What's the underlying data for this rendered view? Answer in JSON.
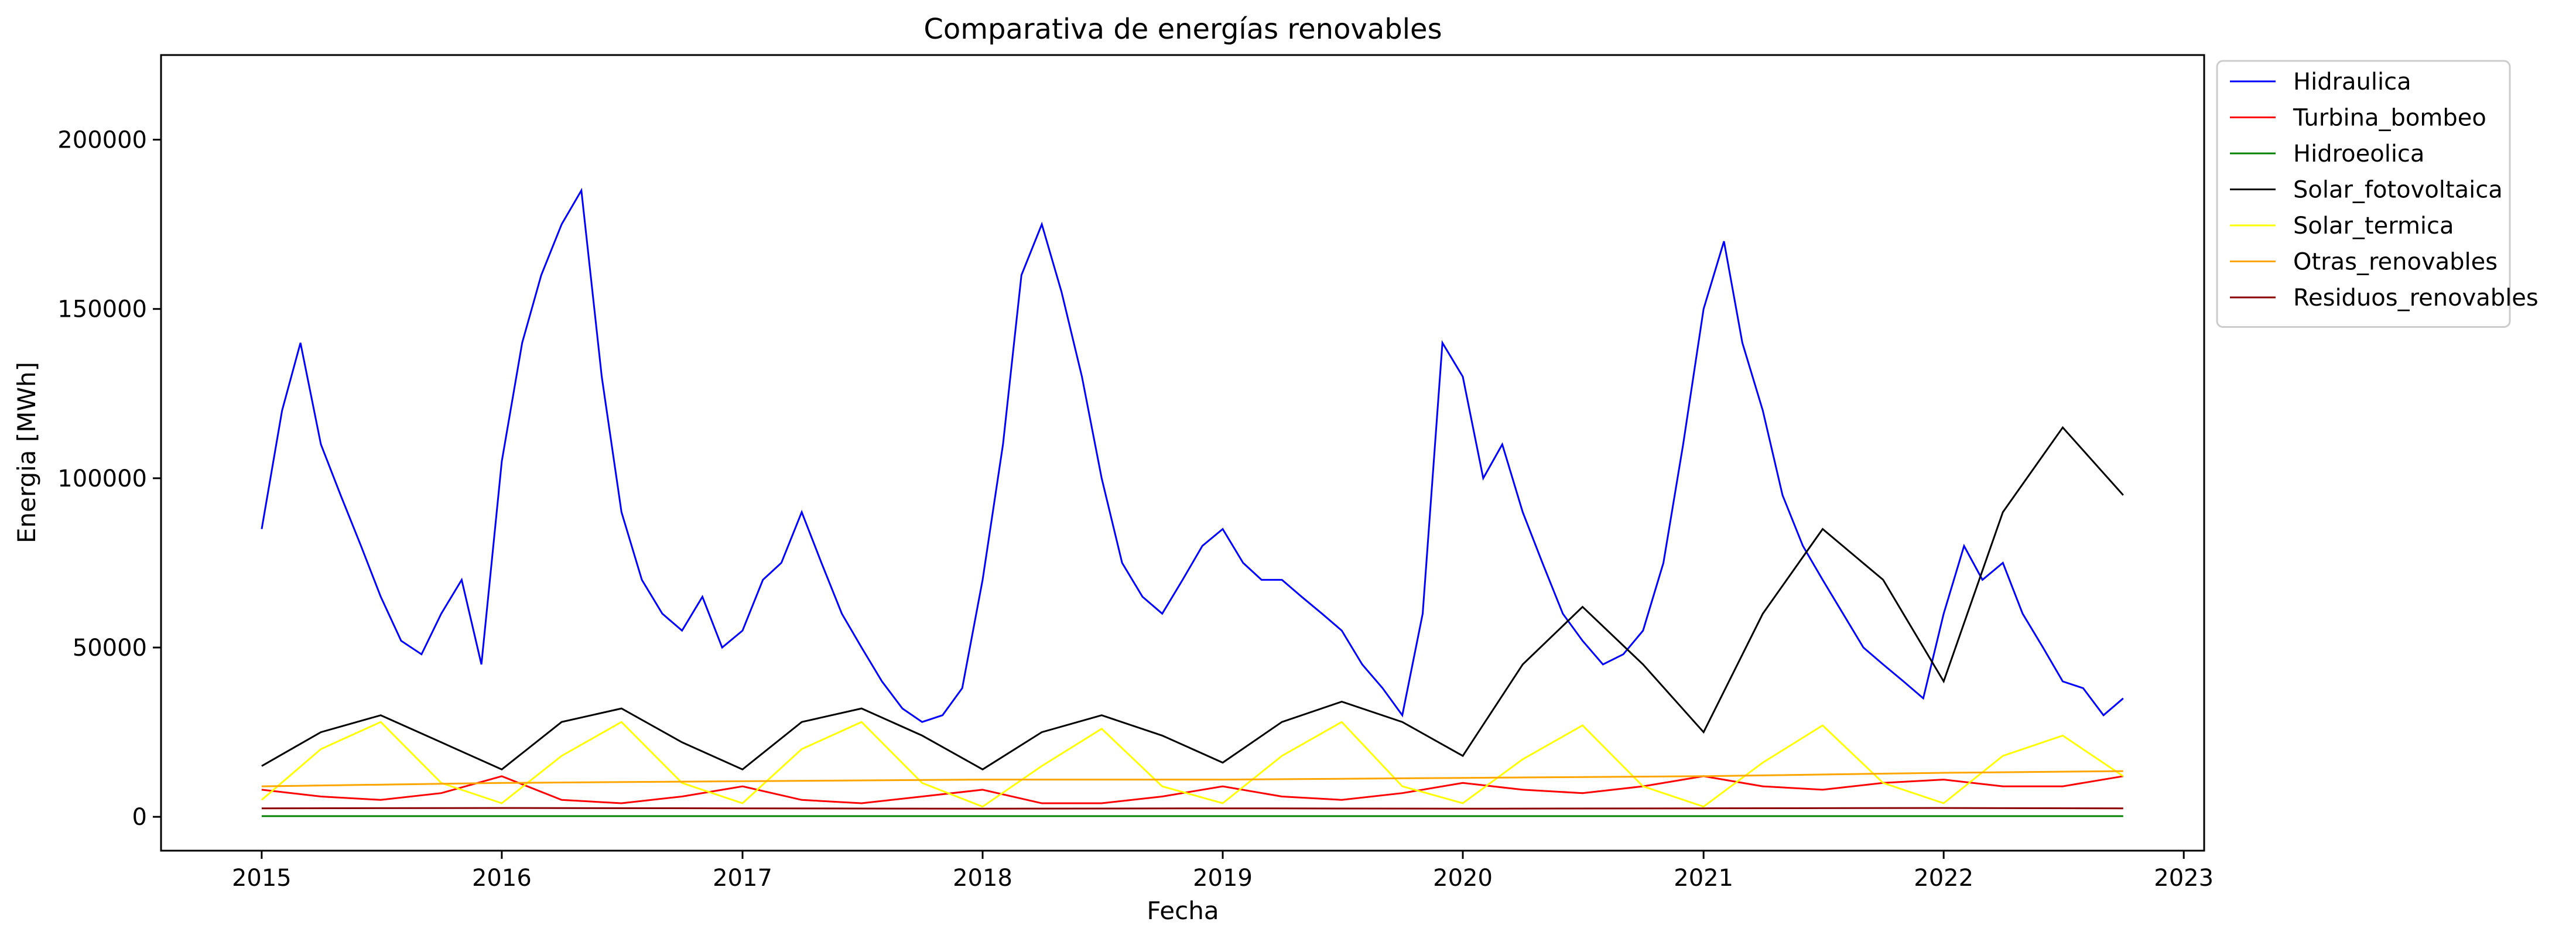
{
  "chart_data": {
    "type": "line",
    "title": "Comparativa de energías renovables",
    "xlabel": "Fecha",
    "ylabel": "Energia [MWh]",
    "xlim": [
      "2014-08-01",
      "2023-02-01"
    ],
    "ylim": [
      -10000,
      225000
    ],
    "xticks": [
      "2015",
      "2016",
      "2017",
      "2018",
      "2019",
      "2020",
      "2021",
      "2022",
      "2023"
    ],
    "yticks": [
      "0",
      "50000",
      "100000",
      "150000",
      "200000"
    ],
    "legend_position": "outside top-right",
    "grid": false,
    "series": [
      {
        "name": "Hidraulica",
        "color": "#0000ff",
        "x": [
          "2015-01-01",
          "2015-02-01",
          "2015-03-01",
          "2015-04-01",
          "2015-05-01",
          "2015-06-01",
          "2015-07-01",
          "2015-08-01",
          "2015-09-01",
          "2015-10-01",
          "2015-11-01",
          "2015-12-01",
          "2016-01-01",
          "2016-02-01",
          "2016-03-01",
          "2016-04-01",
          "2016-05-01",
          "2016-06-01",
          "2016-07-01",
          "2016-08-01",
          "2016-09-01",
          "2016-10-01",
          "2016-11-01",
          "2016-12-01",
          "2017-01-01",
          "2017-02-01",
          "2017-03-01",
          "2017-04-01",
          "2017-05-01",
          "2017-06-01",
          "2017-07-01",
          "2017-08-01",
          "2017-09-01",
          "2017-10-01",
          "2017-11-01",
          "2017-12-01",
          "2018-01-01",
          "2018-02-01",
          "2018-03-01",
          "2018-04-01",
          "2018-05-01",
          "2018-06-01",
          "2018-07-01",
          "2018-08-01",
          "2018-09-01",
          "2018-10-01",
          "2018-11-01",
          "2018-12-01",
          "2019-01-01",
          "2019-02-01",
          "2019-03-01",
          "2019-04-01",
          "2019-05-01",
          "2019-06-01",
          "2019-07-01",
          "2019-08-01",
          "2019-09-01",
          "2019-10-01",
          "2019-11-01",
          "2019-12-01",
          "2020-01-01",
          "2020-02-01",
          "2020-03-01",
          "2020-04-01",
          "2020-05-01",
          "2020-06-01",
          "2020-07-01",
          "2020-08-01",
          "2020-09-01",
          "2020-10-01",
          "2020-11-01",
          "2020-12-01",
          "2021-01-01",
          "2021-02-01",
          "2021-03-01",
          "2021-04-01",
          "2021-05-01",
          "2021-06-01",
          "2021-07-01",
          "2021-08-01",
          "2021-09-01",
          "2021-10-01",
          "2021-11-01",
          "2021-12-01",
          "2022-01-01",
          "2022-02-01",
          "2022-03-01",
          "2022-04-01",
          "2022-05-01",
          "2022-06-01",
          "2022-07-01",
          "2022-08-01",
          "2022-09-01",
          "2022-10-01"
        ],
        "y": [
          85000,
          120000,
          140000,
          110000,
          95000,
          80000,
          65000,
          52000,
          48000,
          60000,
          70000,
          45000,
          105000,
          140000,
          160000,
          175000,
          185000,
          130000,
          90000,
          70000,
          60000,
          55000,
          65000,
          50000,
          55000,
          70000,
          75000,
          90000,
          75000,
          60000,
          50000,
          40000,
          32000,
          28000,
          30000,
          38000,
          70000,
          110000,
          160000,
          175000,
          155000,
          130000,
          100000,
          75000,
          65000,
          60000,
          70000,
          80000,
          85000,
          75000,
          70000,
          70000,
          65000,
          60000,
          55000,
          45000,
          38000,
          30000,
          60000,
          140000,
          130000,
          100000,
          110000,
          90000,
          75000,
          60000,
          52000,
          45000,
          48000,
          55000,
          75000,
          110000,
          150000,
          170000,
          140000,
          120000,
          95000,
          80000,
          70000,
          60000,
          50000,
          45000,
          40000,
          35000,
          60000,
          80000,
          70000,
          75000,
          60000,
          50000,
          40000,
          38000,
          30000,
          35000
        ]
      },
      {
        "name": "Turbina_bombeo",
        "color": "#ff0000",
        "x": [
          "2015-01-01",
          "2015-04-01",
          "2015-07-01",
          "2015-10-01",
          "2016-01-01",
          "2016-04-01",
          "2016-07-01",
          "2016-10-01",
          "2017-01-01",
          "2017-04-01",
          "2017-07-01",
          "2017-10-01",
          "2018-01-01",
          "2018-04-01",
          "2018-07-01",
          "2018-10-01",
          "2019-01-01",
          "2019-04-01",
          "2019-07-01",
          "2019-10-01",
          "2020-01-01",
          "2020-04-01",
          "2020-07-01",
          "2020-10-01",
          "2021-01-01",
          "2021-04-01",
          "2021-07-01",
          "2021-10-01",
          "2022-01-01",
          "2022-04-01",
          "2022-07-01",
          "2022-10-01"
        ],
        "y": [
          8000,
          6000,
          5000,
          7000,
          12000,
          5000,
          4000,
          6000,
          9000,
          5000,
          4000,
          6000,
          8000,
          4000,
          4000,
          6000,
          9000,
          6000,
          5000,
          7000,
          10000,
          8000,
          7000,
          9000,
          12000,
          9000,
          8000,
          10000,
          11000,
          9000,
          9000,
          12000
        ]
      },
      {
        "name": "Hidroeolica",
        "color": "#008000",
        "x": [
          "2015-01-01",
          "2016-01-01",
          "2017-01-01",
          "2018-01-01",
          "2019-01-01",
          "2020-01-01",
          "2021-01-01",
          "2022-01-01",
          "2022-10-01"
        ],
        "y": [
          200,
          200,
          200,
          200,
          200,
          200,
          200,
          200,
          200
        ]
      },
      {
        "name": "Solar_fotovoltaica",
        "color": "#000000",
        "x": [
          "2015-01-01",
          "2015-04-01",
          "2015-07-01",
          "2015-10-01",
          "2016-01-01",
          "2016-04-01",
          "2016-07-01",
          "2016-10-01",
          "2017-01-01",
          "2017-04-01",
          "2017-07-01",
          "2017-10-01",
          "2018-01-01",
          "2018-04-01",
          "2018-07-01",
          "2018-10-01",
          "2019-01-01",
          "2019-04-01",
          "2019-07-01",
          "2019-10-01",
          "2020-01-01",
          "2020-04-01",
          "2020-07-01",
          "2020-10-01",
          "2021-01-01",
          "2021-04-01",
          "2021-07-01",
          "2021-10-01",
          "2022-01-01",
          "2022-04-01",
          "2022-07-01",
          "2022-10-01"
        ],
        "y": [
          15000,
          25000,
          30000,
          22000,
          14000,
          28000,
          32000,
          22000,
          14000,
          28000,
          32000,
          24000,
          14000,
          25000,
          30000,
          24000,
          16000,
          28000,
          34000,
          28000,
          18000,
          45000,
          62000,
          45000,
          25000,
          60000,
          85000,
          70000,
          40000,
          90000,
          115000,
          95000
        ]
      },
      {
        "name": "Solar_termica",
        "color": "#ffff00",
        "x": [
          "2015-01-01",
          "2015-04-01",
          "2015-07-01",
          "2015-10-01",
          "2016-01-01",
          "2016-04-01",
          "2016-07-01",
          "2016-10-01",
          "2017-01-01",
          "2017-04-01",
          "2017-07-01",
          "2017-10-01",
          "2018-01-01",
          "2018-04-01",
          "2018-07-01",
          "2018-10-01",
          "2019-01-01",
          "2019-04-01",
          "2019-07-01",
          "2019-10-01",
          "2020-01-01",
          "2020-04-01",
          "2020-07-01",
          "2020-10-01",
          "2021-01-01",
          "2021-04-01",
          "2021-07-01",
          "2021-10-01",
          "2022-01-01",
          "2022-04-01",
          "2022-07-01",
          "2022-10-01"
        ],
        "y": [
          5000,
          20000,
          28000,
          10000,
          4000,
          18000,
          28000,
          10000,
          4000,
          20000,
          28000,
          10000,
          3000,
          15000,
          26000,
          9000,
          4000,
          18000,
          28000,
          9000,
          4000,
          17000,
          27000,
          9000,
          3000,
          16000,
          27000,
          10000,
          4000,
          18000,
          24000,
          12000
        ]
      },
      {
        "name": "Otras_renovables",
        "color": "#ffa500",
        "x": [
          "2015-01-01",
          "2016-01-01",
          "2017-01-01",
          "2018-01-01",
          "2019-01-01",
          "2020-01-01",
          "2021-01-01",
          "2022-01-01",
          "2022-10-01"
        ],
        "y": [
          9000,
          10000,
          10500,
          11000,
          11000,
          11500,
          12000,
          13000,
          13500
        ]
      },
      {
        "name": "Residuos_renovables",
        "color": "#8b0000",
        "x": [
          "2015-01-01",
          "2016-01-01",
          "2017-01-01",
          "2018-01-01",
          "2019-01-01",
          "2020-01-01",
          "2021-01-01",
          "2022-01-01",
          "2022-10-01"
        ],
        "y": [
          2500,
          2600,
          2500,
          2400,
          2500,
          2400,
          2500,
          2600,
          2500
        ]
      }
    ]
  }
}
